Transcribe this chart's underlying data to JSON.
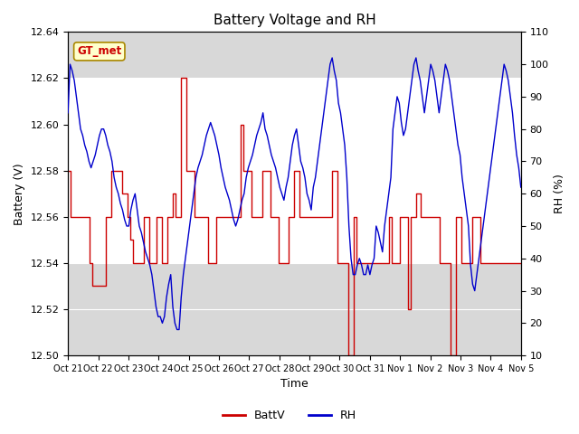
{
  "title": "Battery Voltage and RH",
  "xlabel": "Time",
  "ylabel_left": "Battery (V)",
  "ylabel_right": "RH (%)",
  "ylim_left": [
    12.5,
    12.64
  ],
  "ylim_right": [
    10,
    110
  ],
  "yticks_left": [
    12.5,
    12.52,
    12.54,
    12.56,
    12.58,
    12.6,
    12.62,
    12.64
  ],
  "yticks_right": [
    10,
    20,
    30,
    40,
    50,
    60,
    70,
    80,
    90,
    100,
    110
  ],
  "xtick_labels": [
    "Oct 21",
    "Oct 22",
    "Oct 23",
    "Oct 24",
    "Oct 25",
    "Oct 26",
    "Oct 27",
    "Oct 28",
    "Oct 29",
    "Oct 30",
    "Oct 31",
    "Nov 1",
    "Nov 2",
    "Nov 3",
    "Nov 4",
    "Nov 5"
  ],
  "shade_ylim": [
    12.54,
    12.62
  ],
  "shade_color": "#ffffff",
  "plot_bg_color": "#d8d8d8",
  "annotation_text": "GT_met",
  "annotation_color": "#cc0000",
  "annotation_bg": "#ffffcc",
  "annotation_edge": "#aa8800",
  "line_color_battv": "#cc0000",
  "line_color_rh": "#0000cc",
  "legend_battv": "BattV",
  "legend_rh": "RH",
  "background_color": "#ffffff",
  "battv": [
    12.58,
    12.56,
    12.56,
    12.56,
    12.56,
    12.56,
    12.56,
    12.56,
    12.54,
    12.53,
    12.53,
    12.53,
    12.53,
    12.53,
    12.56,
    12.56,
    12.58,
    12.58,
    12.58,
    12.58,
    12.57,
    12.57,
    12.56,
    12.55,
    12.54,
    12.54,
    12.54,
    12.54,
    12.56,
    12.56,
    12.54,
    12.54,
    12.54,
    12.56,
    12.56,
    12.54,
    12.54,
    12.56,
    12.56,
    12.57,
    12.56,
    12.56,
    12.62,
    12.62,
    12.58,
    12.58,
    12.58,
    12.56,
    12.56,
    12.56,
    12.56,
    12.56,
    12.54,
    12.54,
    12.54,
    12.56,
    12.56,
    12.56,
    12.56,
    12.56,
    12.56,
    12.56,
    12.56,
    12.56,
    12.6,
    12.58,
    12.58,
    12.58,
    12.56,
    12.56,
    12.56,
    12.56,
    12.58,
    12.58,
    12.58,
    12.56,
    12.56,
    12.56,
    12.54,
    12.54,
    12.54,
    12.54,
    12.56,
    12.56,
    12.58,
    12.58,
    12.56,
    12.56,
    12.56,
    12.56,
    12.56,
    12.56,
    12.56,
    12.56,
    12.56,
    12.56,
    12.56,
    12.56,
    12.58,
    12.58,
    12.54,
    12.54,
    12.54,
    12.54,
    12.5,
    12.5,
    12.56,
    12.54,
    12.54,
    12.54,
    12.54,
    12.54,
    12.54,
    12.54,
    12.54,
    12.54,
    12.54,
    12.54,
    12.54,
    12.56,
    12.54,
    12.54,
    12.54,
    12.56,
    12.56,
    12.56,
    12.52,
    12.56,
    12.56,
    12.57,
    12.57,
    12.56,
    12.56,
    12.56,
    12.56,
    12.56,
    12.56,
    12.56,
    12.54,
    12.54,
    12.54,
    12.54,
    12.5,
    12.5,
    12.56,
    12.56,
    12.54,
    12.54,
    12.54,
    12.54,
    12.56,
    12.56,
    12.56,
    12.54,
    12.54,
    12.54,
    12.54,
    12.54,
    12.54,
    12.54,
    12.54,
    12.54,
    12.54,
    12.54,
    12.54,
    12.54,
    12.54,
    12.54,
    12.54
  ],
  "rh": [
    85,
    100,
    98,
    95,
    90,
    85,
    80,
    78,
    75,
    73,
    70,
    68,
    70,
    72,
    75,
    78,
    80,
    80,
    78,
    75,
    73,
    70,
    65,
    62,
    60,
    57,
    55,
    52,
    50,
    50,
    55,
    58,
    60,
    55,
    50,
    48,
    45,
    42,
    40,
    38,
    35,
    30,
    25,
    22,
    22,
    20,
    22,
    28,
    32,
    35,
    25,
    20,
    18,
    18,
    28,
    35,
    40,
    45,
    50,
    55,
    60,
    65,
    68,
    70,
    72,
    75,
    78,
    80,
    82,
    80,
    78,
    75,
    72,
    68,
    65,
    62,
    60,
    58,
    55,
    52,
    50,
    52,
    55,
    58,
    60,
    65,
    68,
    70,
    72,
    75,
    78,
    80,
    82,
    85,
    80,
    78,
    75,
    72,
    70,
    68,
    65,
    62,
    60,
    58,
    62,
    65,
    70,
    75,
    78,
    80,
    75,
    70,
    68,
    65,
    60,
    58,
    55,
    62,
    65,
    70,
    75,
    80,
    85,
    90,
    95,
    100,
    102,
    98,
    95,
    88,
    85,
    80,
    75,
    65,
    50,
    40,
    35,
    35,
    38,
    40,
    38,
    35,
    35,
    38,
    35,
    38,
    40,
    50,
    48,
    45,
    42,
    50,
    55,
    60,
    65,
    80,
    85,
    90,
    88,
    82,
    78,
    80,
    85,
    90,
    95,
    100,
    102,
    98,
    95,
    90,
    85,
    90,
    95,
    100,
    98,
    95,
    90,
    85,
    90,
    95,
    100,
    98,
    95,
    90,
    85,
    80,
    75,
    72,
    65,
    60,
    55,
    50,
    38,
    32,
    30,
    35,
    40,
    45,
    50,
    55,
    60,
    65,
    70,
    75,
    80,
    85,
    90,
    95,
    100,
    98,
    95,
    90,
    85,
    78,
    72,
    68,
    62
  ]
}
